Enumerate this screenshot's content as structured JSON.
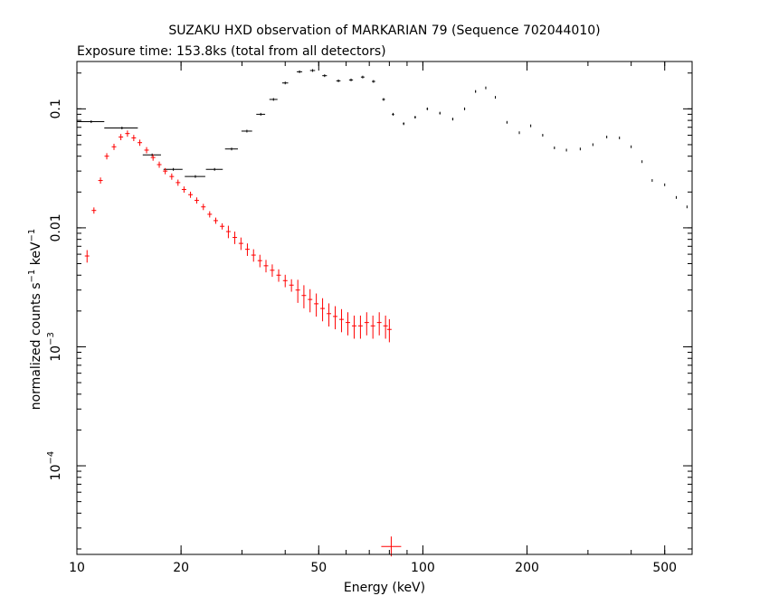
{
  "chart_data": {
    "type": "scatter",
    "title": "SUZAKU HXD observation of MARKARIAN 79 (Sequence 702044010)",
    "subtitle": "Exposure time: 153.8ks (total from all detectors)",
    "xlabel": "Energy (keV)",
    "ylabel": "normalized counts s^-1 keV^-1",
    "x_scale": "log",
    "y_scale": "log",
    "xlim": [
      10,
      600
    ],
    "ylim": [
      1.8e-05,
      0.25
    ],
    "x_ticks": [
      {
        "value": 10,
        "label": "10"
      },
      {
        "value": 20,
        "label": "20"
      },
      {
        "value": 50,
        "label": "50"
      },
      {
        "value": 100,
        "label": "100"
      },
      {
        "value": 200,
        "label": "200"
      },
      {
        "value": 500,
        "label": "500"
      }
    ],
    "y_ticks": [
      {
        "value": 0.0001,
        "base": "10",
        "exp": "−4"
      },
      {
        "value": 0.001,
        "base": "10",
        "exp": "−3"
      },
      {
        "value": 0.01,
        "label": "0.01"
      },
      {
        "value": 0.1,
        "label": "0.1"
      }
    ],
    "grid": false,
    "colors": {
      "GSO": "#000000",
      "PIN": "#ff0000"
    },
    "series": [
      {
        "key": "GSO",
        "color": "#000000",
        "x": [
          11,
          13.5,
          16.5,
          19,
          22,
          25,
          28,
          31,
          34,
          37,
          40,
          44,
          48,
          52,
          57,
          62,
          67,
          72,
          77,
          82,
          88,
          95,
          103,
          112,
          122,
          132,
          142,
          152,
          162,
          175,
          190,
          205,
          222,
          240,
          260,
          285,
          310,
          340,
          370,
          400,
          430,
          460,
          500,
          540,
          580
        ],
        "y": [
          0.078,
          0.069,
          0.041,
          0.031,
          0.027,
          0.031,
          0.046,
          0.065,
          0.09,
          0.12,
          0.165,
          0.205,
          0.21,
          0.19,
          0.172,
          0.175,
          0.185,
          0.17,
          0.12,
          0.09,
          0.075,
          0.085,
          0.1,
          0.092,
          0.082,
          0.1,
          0.14,
          0.15,
          0.125,
          0.077,
          0.063,
          0.072,
          0.06,
          0.047,
          0.045,
          0.046,
          0.05,
          0.058,
          0.057,
          0.048,
          0.036,
          0.025,
          0.023,
          0.018,
          0.015
        ],
        "xerr": [
          1,
          1.5,
          1,
          1.2,
          1.5,
          1.4,
          1.2,
          1.1,
          1,
          1,
          0.8,
          0.8,
          0.8,
          0.8,
          0.8,
          0.8,
          0.8,
          0.8,
          0.7,
          0.6,
          0.5,
          0.5,
          0.5,
          0.5,
          0.5,
          0.5,
          0.5,
          0.5,
          0.5,
          0.5,
          0.5,
          0.5,
          0.5,
          0.5,
          0.5,
          0.5,
          0.5,
          0.5,
          0.5,
          0.5,
          0.5,
          0.5,
          0.5,
          0.5,
          0.5
        ]
      },
      {
        "key": "PIN",
        "color": "#ff0000",
        "x": [
          10.7,
          11.2,
          11.7,
          12.2,
          12.8,
          13.4,
          14,
          14.6,
          15.2,
          15.9,
          16.6,
          17.3,
          18,
          18.8,
          19.6,
          20.4,
          21.3,
          22.2,
          23.2,
          24.2,
          25.2,
          26.3,
          27.4,
          28.6,
          29.8,
          31.1,
          32.4,
          33.8,
          35.2,
          36.7,
          38.3,
          40,
          41.7,
          43.5,
          45.3,
          47.2,
          49.2,
          51.3,
          53.5,
          55.8,
          58.2,
          60.7,
          63.3,
          66,
          68.8,
          71.7,
          74.8,
          78,
          80
        ],
        "y": [
          0.0058,
          0.014,
          0.025,
          0.04,
          0.048,
          0.058,
          0.062,
          0.057,
          0.052,
          0.045,
          0.039,
          0.034,
          0.03,
          0.027,
          0.024,
          0.021,
          0.019,
          0.017,
          0.015,
          0.013,
          0.0115,
          0.0103,
          0.0093,
          0.0083,
          0.0074,
          0.0066,
          0.0059,
          0.0053,
          0.0048,
          0.0044,
          0.004,
          0.0036,
          0.0033,
          0.003,
          0.0027,
          0.0025,
          0.0023,
          0.0021,
          0.0019,
          0.0018,
          0.0017,
          0.0016,
          0.0015,
          0.0015,
          0.0016,
          0.0015,
          0.0016,
          0.0015,
          0.0014
        ]
      },
      {
        "key": "PIN-upper-limit",
        "color": "#ff0000",
        "x": [
          81
        ],
        "y": [
          2.1e-05
        ]
      }
    ]
  }
}
